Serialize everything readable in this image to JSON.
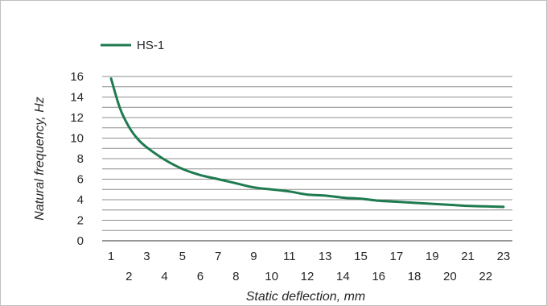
{
  "chart_data": {
    "type": "line",
    "xlabel": "Static deflection, mm",
    "ylabel": "Natural frequency, Hz",
    "x_ticks": [
      "1",
      "2",
      "3",
      "4",
      "5",
      "6",
      "7",
      "8",
      "9",
      "10",
      "11",
      "12",
      "13",
      "14",
      "15",
      "16",
      "17",
      "18",
      "19",
      "20",
      "21",
      "22",
      "23"
    ],
    "y_ticks": [
      "0",
      "2",
      "4",
      "6",
      "8",
      "10",
      "12",
      "14",
      "16"
    ],
    "xlim": [
      0.5,
      23.5
    ],
    "ylim": [
      0,
      16
    ],
    "grid": "horizontal",
    "legend": "top-left",
    "series": [
      {
        "name": "HS-1",
        "color": "#1e7a4f",
        "x": [
          1,
          1.5,
          2,
          2.5,
          3,
          4,
          5,
          6,
          7,
          8,
          9,
          10,
          11,
          12,
          13,
          14,
          15,
          16,
          17,
          18,
          19,
          20,
          21,
          22,
          23
        ],
        "y": [
          15.8,
          12.9,
          11.1,
          9.9,
          9.1,
          7.9,
          7.0,
          6.4,
          6.0,
          5.6,
          5.2,
          5.0,
          4.8,
          4.5,
          4.4,
          4.2,
          4.1,
          3.9,
          3.8,
          3.7,
          3.6,
          3.5,
          3.4,
          3.35,
          3.3
        ]
      }
    ]
  }
}
